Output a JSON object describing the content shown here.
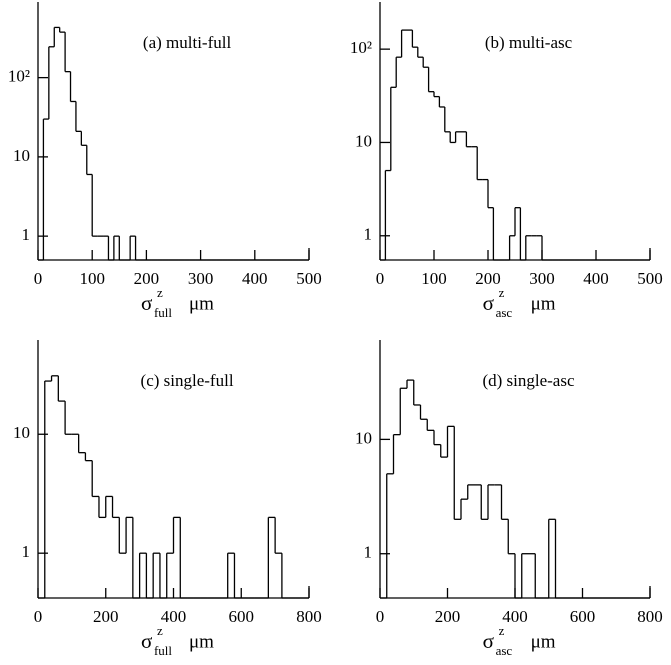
{
  "chart_data": [
    {
      "type": "histogram",
      "title": "(a)   multi-full",
      "color": "#000000",
      "log_y": true,
      "xlabel": {
        "symbol": "σ",
        "sup": "z",
        "sub": "full",
        "unit": "μm"
      },
      "bins": [
        0,
        10,
        20,
        30,
        40,
        50,
        60,
        70,
        80,
        90,
        100,
        110,
        120,
        130,
        140,
        150,
        160,
        170,
        180,
        190,
        200,
        210,
        220,
        230,
        240,
        250,
        260,
        270,
        280,
        290,
        300,
        310,
        320,
        330,
        340,
        350,
        360,
        370,
        380,
        390,
        400,
        410,
        420,
        430,
        440,
        450,
        460,
        470,
        480,
        490,
        500
      ],
      "values": [
        0,
        30,
        245,
        430,
        375,
        119,
        50,
        21,
        14,
        6,
        1,
        1,
        1,
        0,
        1,
        0,
        0,
        1,
        0,
        0,
        0,
        0,
        0,
        0,
        0,
        0,
        0,
        0,
        0,
        0,
        0,
        0,
        0,
        0,
        0,
        0,
        0,
        0,
        0,
        0,
        0,
        0,
        0,
        0,
        0,
        0,
        0,
        0,
        0,
        0
      ],
      "xlim": [
        0,
        500
      ],
      "xticks": [
        0,
        100,
        200,
        300,
        400,
        500
      ],
      "ylim": [
        0.5,
        900
      ],
      "yticks": [
        1,
        10,
        {
          "value": 100,
          "label": "10²"
        }
      ]
    },
    {
      "type": "histogram",
      "title": "(b)   multi-asc",
      "color": "#000000",
      "log_y": true,
      "xlabel": {
        "symbol": "σ",
        "sup": "z",
        "sub": "asc",
        "unit": "μm"
      },
      "bins": [
        0,
        10,
        20,
        30,
        40,
        50,
        60,
        70,
        80,
        90,
        100,
        110,
        120,
        130,
        140,
        150,
        160,
        170,
        180,
        190,
        200,
        210,
        220,
        230,
        240,
        250,
        260,
        270,
        280,
        290,
        300,
        310,
        320,
        330,
        340,
        350,
        360,
        370,
        380,
        390,
        400,
        410,
        420,
        430,
        440,
        450,
        460,
        470,
        480,
        490,
        500
      ],
      "values": [
        0,
        5,
        39,
        82,
        160,
        160,
        105,
        82,
        64,
        35,
        31,
        24,
        13,
        10,
        13,
        13,
        9,
        9,
        4,
        4,
        2,
        0,
        0,
        0,
        1,
        2,
        0,
        1,
        1,
        1,
        0,
        0,
        0,
        0,
        0,
        0,
        0,
        0,
        0,
        0,
        0,
        0,
        0,
        0,
        0,
        0,
        0,
        0,
        0,
        0
      ],
      "xlim": [
        0,
        500
      ],
      "xticks": [
        0,
        100,
        200,
        300,
        400,
        500
      ],
      "ylim": [
        0.55,
        320
      ],
      "yticks": [
        1,
        10,
        {
          "value": 100,
          "label": "10²"
        }
      ]
    },
    {
      "type": "histogram",
      "title": "(c)   single-full",
      "color": "#000000",
      "log_y": true,
      "xlabel": {
        "symbol": "σ",
        "sup": "z",
        "sub": "full",
        "unit": "μm"
      },
      "bins": [
        0,
        20,
        40,
        60,
        80,
        100,
        120,
        140,
        160,
        180,
        200,
        220,
        240,
        260,
        280,
        300,
        320,
        340,
        360,
        380,
        400,
        420,
        440,
        460,
        480,
        500,
        520,
        540,
        560,
        580,
        600,
        620,
        640,
        660,
        680,
        700,
        720,
        740,
        760,
        780,
        800
      ],
      "values": [
        0,
        28,
        31,
        19,
        10,
        10,
        7,
        6,
        3,
        2,
        3,
        2,
        1,
        2,
        0,
        1,
        0,
        1,
        0,
        1,
        2,
        0,
        0,
        0,
        0,
        0,
        0,
        0,
        1,
        0,
        0,
        0,
        0,
        0,
        2,
        1,
        0,
        0,
        0,
        0
      ],
      "xlim": [
        0,
        800
      ],
      "xticks": [
        0,
        200,
        400,
        600,
        800
      ],
      "ylim": [
        0.42,
        62
      ],
      "yticks": [
        1,
        10
      ]
    },
    {
      "type": "histogram",
      "title": "(d)   single-asc",
      "color": "#000000",
      "log_y": true,
      "xlabel": {
        "symbol": "σ",
        "sup": "z",
        "sub": "asc",
        "unit": "μm"
      },
      "bins": [
        0,
        20,
        40,
        60,
        80,
        100,
        120,
        140,
        160,
        180,
        200,
        220,
        240,
        260,
        280,
        300,
        320,
        340,
        360,
        380,
        400,
        420,
        440,
        460,
        480,
        500,
        520,
        540,
        560,
        580,
        600,
        620,
        640,
        660,
        680,
        700,
        720,
        740,
        760,
        780,
        800
      ],
      "values": [
        0,
        5,
        11,
        28,
        33,
        20,
        15,
        12,
        9,
        7,
        13,
        2,
        3,
        4,
        4,
        2,
        4,
        4,
        2,
        1,
        0,
        1,
        1,
        0,
        0,
        2,
        0,
        0,
        0,
        0,
        0,
        0,
        0,
        0,
        0,
        0,
        0,
        0,
        0,
        0
      ],
      "xlim": [
        0,
        800
      ],
      "xticks": [
        0,
        200,
        400,
        600,
        800
      ],
      "ylim": [
        0.41,
        74
      ],
      "yticks": [
        1,
        10
      ]
    }
  ]
}
